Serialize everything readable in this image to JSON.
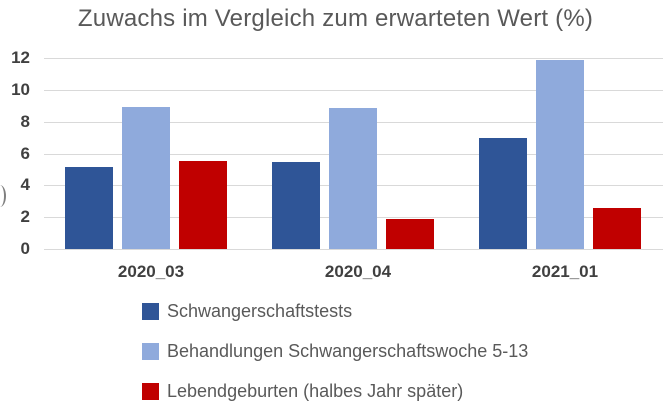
{
  "chart_data": {
    "type": "bar",
    "title": "Zuwachs im Vergleich zum erwarteten Wert (%)",
    "categories": [
      "2020_03",
      "2020_04",
      "2021_01"
    ],
    "series": [
      {
        "name": "Schwangerschaftstests",
        "color": "#2F5597",
        "values": [
          5.15,
          5.45,
          7.0
        ]
      },
      {
        "name": "Behandlungen Schwangerschaftswoche 5-13",
        "color": "#8FAADC",
        "values": [
          8.95,
          8.85,
          11.85
        ]
      },
      {
        "name": "Lebendgeburten (halbes Jahr später)",
        "color": "#C00000",
        "values": [
          5.55,
          1.9,
          2.55
        ]
      }
    ],
    "xlabel": "",
    "ylabel": "",
    "ylim": [
      0,
      12
    ],
    "ytick_step": 2,
    "yticks": [
      "0",
      "2",
      "4",
      "6",
      "8",
      "10",
      "12"
    ],
    "grid": true,
    "gridline_color": "#D9D9D9",
    "legend_position": "bottom-left-vertical",
    "title_color": "#595959",
    "axis_text_color": "#404040",
    "legend_text_color": "#595959"
  }
}
